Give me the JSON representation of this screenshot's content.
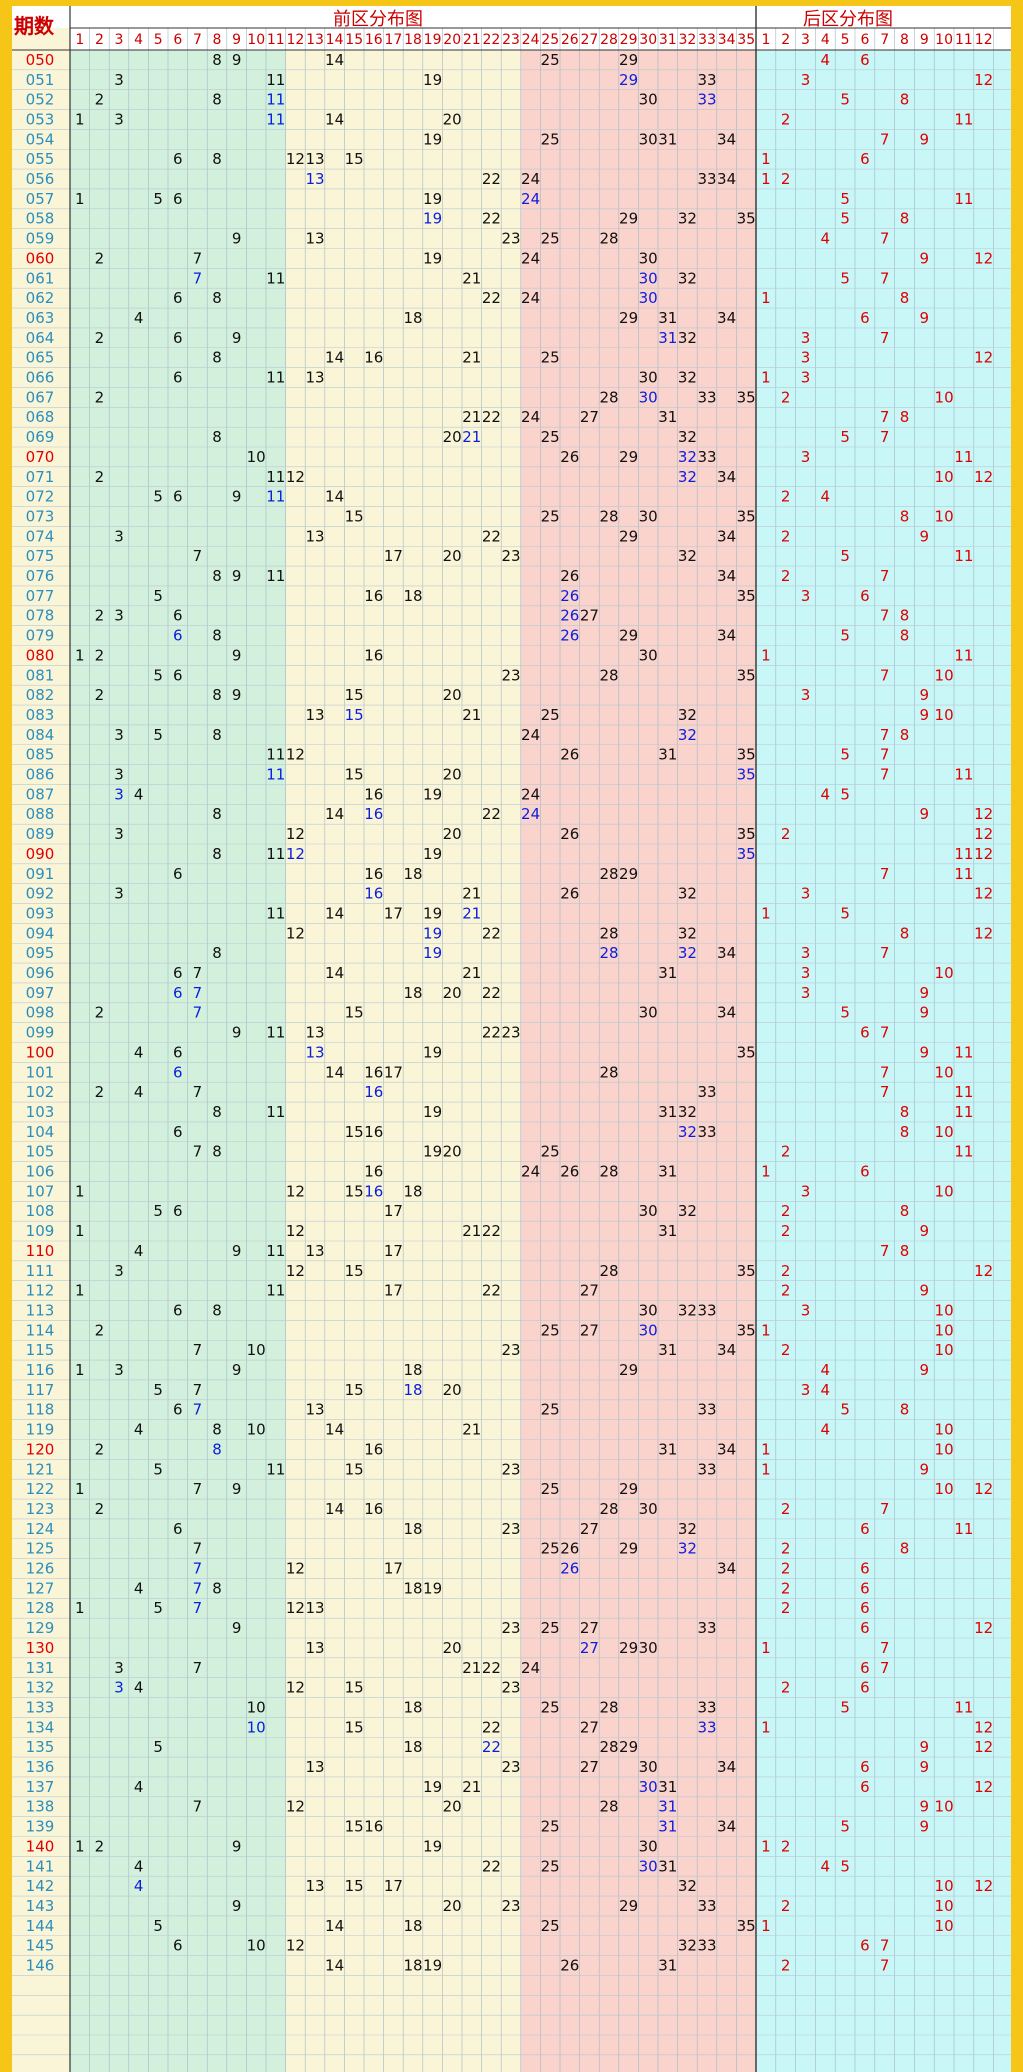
{
  "chart_data": {
    "type": "table",
    "header": {
      "period_label": "期数",
      "front_title": "前区分布图",
      "back_title": "后区分布图",
      "front_numbers": [
        "1",
        "2",
        "3",
        "4",
        "5",
        "6",
        "7",
        "8",
        "9",
        "10",
        "11",
        "12",
        "13",
        "14",
        "15",
        "16",
        "17",
        "18",
        "19",
        "20",
        "21",
        "22",
        "23",
        "24",
        "25",
        "26",
        "27",
        "28",
        "29",
        "30",
        "31",
        "32",
        "33",
        "34",
        "35"
      ],
      "back_numbers": [
        "1",
        "2",
        "3",
        "4",
        "5",
        "6",
        "7",
        "8",
        "9",
        "10",
        "11",
        "12"
      ]
    },
    "colors": {
      "frame": "#f5c518",
      "zone1": "#d3f0dc",
      "zone2": "#fbf5d8",
      "zone3": "#f9d3cc",
      "back": "#c9f7f7",
      "header_text": "#cc0000",
      "period_normal": "#2a8fbd",
      "period_highlight": "#e00000",
      "front_number": "#111111",
      "front_repeat": "#0a1ee0",
      "back_number": "#e00000"
    },
    "rows": [
      {
        "period": "050",
        "front": [
          8,
          9,
          14,
          25,
          29
        ],
        "back": [
          4,
          6
        ]
      },
      {
        "period": "051",
        "front": [
          3,
          11,
          19,
          29,
          33
        ],
        "back": [
          3,
          12
        ]
      },
      {
        "period": "052",
        "front": [
          2,
          8,
          11,
          30,
          33
        ],
        "back": [
          5,
          8
        ]
      },
      {
        "period": "053",
        "front": [
          1,
          3,
          11,
          14,
          20
        ],
        "back": [
          2,
          11
        ]
      },
      {
        "period": "054",
        "front": [
          19,
          25,
          30,
          31,
          34
        ],
        "back": [
          7,
          9
        ]
      },
      {
        "period": "055",
        "front": [
          6,
          8,
          12,
          13,
          15
        ],
        "back": [
          1,
          6
        ]
      },
      {
        "period": "056",
        "front": [
          13,
          22,
          24,
          33,
          34
        ],
        "back": [
          1,
          2
        ]
      },
      {
        "period": "057",
        "front": [
          1,
          5,
          6,
          19,
          24
        ],
        "back": [
          5,
          11
        ]
      },
      {
        "period": "058",
        "front": [
          19,
          22,
          29,
          32,
          35
        ],
        "back": [
          5,
          8
        ]
      },
      {
        "period": "059",
        "front": [
          9,
          13,
          23,
          25,
          28
        ],
        "back": [
          4,
          7
        ]
      },
      {
        "period": "060",
        "front": [
          2,
          7,
          19,
          24,
          30
        ],
        "back": [
          9,
          12
        ]
      },
      {
        "period": "061",
        "front": [
          7,
          11,
          21,
          30,
          32
        ],
        "back": [
          5,
          7
        ]
      },
      {
        "period": "062",
        "front": [
          6,
          8,
          22,
          24,
          30
        ],
        "back": [
          1,
          8
        ]
      },
      {
        "period": "063",
        "front": [
          4,
          18,
          29,
          31,
          34
        ],
        "back": [
          6,
          9
        ]
      },
      {
        "period": "064",
        "front": [
          2,
          6,
          9,
          31,
          32
        ],
        "back": [
          3,
          7
        ]
      },
      {
        "period": "065",
        "front": [
          8,
          14,
          16,
          21,
          25
        ],
        "back": [
          3,
          12
        ]
      },
      {
        "period": "066",
        "front": [
          6,
          11,
          13,
          30,
          32
        ],
        "back": [
          1,
          3
        ]
      },
      {
        "period": "067",
        "front": [
          2,
          28,
          30,
          33,
          35
        ],
        "back": [
          2,
          10
        ]
      },
      {
        "period": "068",
        "front": [
          21,
          22,
          24,
          27,
          31
        ],
        "back": [
          7,
          8
        ]
      },
      {
        "period": "069",
        "front": [
          8,
          20,
          21,
          25,
          32
        ],
        "back": [
          5,
          7
        ]
      },
      {
        "period": "070",
        "front": [
          10,
          26,
          29,
          32,
          33
        ],
        "back": [
          3,
          11
        ]
      },
      {
        "period": "071",
        "front": [
          2,
          11,
          12,
          32,
          34
        ],
        "back": [
          10,
          12
        ]
      },
      {
        "period": "072",
        "front": [
          5,
          6,
          9,
          11,
          14
        ],
        "back": [
          2,
          4
        ]
      },
      {
        "period": "073",
        "front": [
          15,
          25,
          28,
          30,
          35
        ],
        "back": [
          8,
          10
        ]
      },
      {
        "period": "074",
        "front": [
          3,
          13,
          22,
          29,
          34
        ],
        "back": [
          2,
          9
        ]
      },
      {
        "period": "075",
        "front": [
          7,
          17,
          20,
          23,
          32
        ],
        "back": [
          5,
          11
        ]
      },
      {
        "period": "076",
        "front": [
          8,
          9,
          11,
          26,
          34
        ],
        "back": [
          2,
          7
        ]
      },
      {
        "period": "077",
        "front": [
          5,
          16,
          18,
          26,
          35
        ],
        "back": [
          3,
          6
        ]
      },
      {
        "period": "078",
        "front": [
          2,
          3,
          6,
          26,
          27
        ],
        "back": [
          7,
          8
        ]
      },
      {
        "period": "079",
        "front": [
          6,
          8,
          26,
          29,
          34
        ],
        "back": [
          5,
          8
        ]
      },
      {
        "period": "080",
        "front": [
          1,
          2,
          9,
          16,
          30
        ],
        "back": [
          1,
          11
        ]
      },
      {
        "period": "081",
        "front": [
          5,
          6,
          23,
          28,
          35
        ],
        "back": [
          7,
          10
        ]
      },
      {
        "period": "082",
        "front": [
          2,
          8,
          9,
          15,
          20
        ],
        "back": [
          3,
          9
        ]
      },
      {
        "period": "083",
        "front": [
          13,
          15,
          21,
          25,
          32
        ],
        "back": [
          9,
          10
        ]
      },
      {
        "period": "084",
        "front": [
          3,
          5,
          8,
          24,
          32
        ],
        "back": [
          7,
          8
        ]
      },
      {
        "period": "085",
        "front": [
          11,
          12,
          26,
          31,
          35
        ],
        "back": [
          5,
          7
        ]
      },
      {
        "period": "086",
        "front": [
          3,
          11,
          15,
          20,
          35
        ],
        "back": [
          7,
          11
        ]
      },
      {
        "period": "087",
        "front": [
          3,
          4,
          16,
          19,
          24
        ],
        "back": [
          4,
          5
        ]
      },
      {
        "period": "088",
        "front": [
          8,
          14,
          16,
          22,
          24
        ],
        "back": [
          9,
          12
        ]
      },
      {
        "period": "089",
        "front": [
          3,
          12,
          20,
          26,
          35
        ],
        "back": [
          2,
          12
        ]
      },
      {
        "period": "090",
        "front": [
          8,
          11,
          12,
          19,
          35
        ],
        "back": [
          11,
          12
        ]
      },
      {
        "period": "091",
        "front": [
          6,
          16,
          18,
          28,
          29
        ],
        "back": [
          7,
          11
        ]
      },
      {
        "period": "092",
        "front": [
          3,
          16,
          21,
          26,
          32
        ],
        "back": [
          3,
          12
        ]
      },
      {
        "period": "093",
        "front": [
          11,
          14,
          17,
          19,
          21
        ],
        "back": [
          1,
          5
        ]
      },
      {
        "period": "094",
        "front": [
          12,
          19,
          22,
          28,
          32
        ],
        "back": [
          8,
          12
        ]
      },
      {
        "period": "095",
        "front": [
          8,
          19,
          28,
          32,
          34
        ],
        "back": [
          3,
          7
        ]
      },
      {
        "period": "096",
        "front": [
          6,
          7,
          14,
          21,
          31
        ],
        "back": [
          3,
          10
        ]
      },
      {
        "period": "097",
        "front": [
          6,
          7,
          18,
          20,
          22
        ],
        "back": [
          3,
          9
        ]
      },
      {
        "period": "098",
        "front": [
          2,
          7,
          15,
          30,
          34
        ],
        "back": [
          5,
          9
        ]
      },
      {
        "period": "099",
        "front": [
          9,
          11,
          13,
          22,
          23
        ],
        "back": [
          6,
          7
        ]
      },
      {
        "period": "100",
        "front": [
          4,
          6,
          13,
          19,
          35
        ],
        "back": [
          9,
          11
        ]
      },
      {
        "period": "101",
        "front": [
          6,
          14,
          16,
          17,
          28
        ],
        "back": [
          7,
          10
        ]
      },
      {
        "period": "102",
        "front": [
          2,
          4,
          7,
          16,
          33
        ],
        "back": [
          7,
          11
        ]
      },
      {
        "period": "103",
        "front": [
          8,
          11,
          19,
          31,
          32
        ],
        "back": [
          8,
          11
        ]
      },
      {
        "period": "104",
        "front": [
          6,
          15,
          16,
          32,
          33
        ],
        "back": [
          8,
          10
        ]
      },
      {
        "period": "105",
        "front": [
          7,
          8,
          19,
          20,
          25
        ],
        "back": [
          2,
          11
        ]
      },
      {
        "period": "106",
        "front": [
          16,
          24,
          26,
          28,
          31
        ],
        "back": [
          1,
          6
        ]
      },
      {
        "period": "107",
        "front": [
          1,
          12,
          15,
          16,
          18
        ],
        "back": [
          3,
          10
        ]
      },
      {
        "period": "108",
        "front": [
          5,
          6,
          17,
          30,
          32
        ],
        "back": [
          2,
          8
        ]
      },
      {
        "period": "109",
        "front": [
          1,
          12,
          21,
          22,
          31
        ],
        "back": [
          2,
          9
        ]
      },
      {
        "period": "110",
        "front": [
          4,
          9,
          11,
          13,
          17
        ],
        "back": [
          7,
          8
        ]
      },
      {
        "period": "111",
        "front": [
          3,
          12,
          15,
          28,
          35
        ],
        "back": [
          2,
          12
        ]
      },
      {
        "period": "112",
        "front": [
          1,
          11,
          17,
          22,
          27
        ],
        "back": [
          2,
          9
        ]
      },
      {
        "period": "113",
        "front": [
          6,
          8,
          30,
          32,
          33
        ],
        "back": [
          3,
          10
        ]
      },
      {
        "period": "114",
        "front": [
          2,
          25,
          27,
          30,
          35
        ],
        "back": [
          1,
          10
        ]
      },
      {
        "period": "115",
        "front": [
          7,
          10,
          23,
          31,
          34
        ],
        "back": [
          2,
          10
        ]
      },
      {
        "period": "116",
        "front": [
          1,
          3,
          9,
          18,
          29
        ],
        "back": [
          4,
          9
        ]
      },
      {
        "period": "117",
        "front": [
          5,
          7,
          15,
          18,
          20
        ],
        "back": [
          3,
          4
        ]
      },
      {
        "period": "118",
        "front": [
          6,
          7,
          13,
          25,
          33
        ],
        "back": [
          5,
          8
        ]
      },
      {
        "period": "119",
        "front": [
          4,
          8,
          10,
          14,
          21
        ],
        "back": [
          4,
          10
        ]
      },
      {
        "period": "120",
        "front": [
          2,
          8,
          16,
          31,
          34
        ],
        "back": [
          1,
          10
        ]
      },
      {
        "period": "121",
        "front": [
          5,
          11,
          15,
          23,
          33
        ],
        "back": [
          1,
          9
        ]
      },
      {
        "period": "122",
        "front": [
          1,
          7,
          9,
          25,
          29
        ],
        "back": [
          10,
          12
        ]
      },
      {
        "period": "123",
        "front": [
          2,
          14,
          16,
          28,
          30
        ],
        "back": [
          2,
          7
        ]
      },
      {
        "period": "124",
        "front": [
          6,
          18,
          23,
          27,
          32
        ],
        "back": [
          6,
          11
        ]
      },
      {
        "period": "125",
        "front": [
          7,
          25,
          26,
          29,
          32
        ],
        "back": [
          2,
          8
        ]
      },
      {
        "period": "126",
        "front": [
          7,
          12,
          17,
          26,
          34
        ],
        "back": [
          2,
          6
        ]
      },
      {
        "period": "127",
        "front": [
          4,
          7,
          8,
          18,
          19
        ],
        "back": [
          2,
          6
        ]
      },
      {
        "period": "128",
        "front": [
          1,
          5,
          7,
          12,
          13
        ],
        "back": [
          2,
          6
        ]
      },
      {
        "period": "129",
        "front": [
          9,
          23,
          25,
          27,
          33
        ],
        "back": [
          6,
          12
        ]
      },
      {
        "period": "130",
        "front": [
          13,
          20,
          27,
          29,
          30
        ],
        "back": [
          1,
          7
        ]
      },
      {
        "period": "131",
        "front": [
          3,
          7,
          21,
          22,
          24
        ],
        "back": [
          6,
          7
        ]
      },
      {
        "period": "132",
        "front": [
          3,
          4,
          12,
          15,
          23
        ],
        "back": [
          2,
          6
        ]
      },
      {
        "period": "133",
        "front": [
          10,
          18,
          25,
          28,
          33
        ],
        "back": [
          5,
          11
        ]
      },
      {
        "period": "134",
        "front": [
          10,
          15,
          22,
          27,
          33
        ],
        "back": [
          1,
          12
        ]
      },
      {
        "period": "135",
        "front": [
          5,
          18,
          22,
          28,
          29
        ],
        "back": [
          9,
          12
        ]
      },
      {
        "period": "136",
        "front": [
          13,
          23,
          27,
          30,
          34
        ],
        "back": [
          6,
          9
        ]
      },
      {
        "period": "137",
        "front": [
          4,
          19,
          21,
          30,
          31
        ],
        "back": [
          6,
          12
        ]
      },
      {
        "period": "138",
        "front": [
          7,
          12,
          20,
          28,
          31
        ],
        "back": [
          9,
          10
        ]
      },
      {
        "period": "139",
        "front": [
          15,
          16,
          25,
          31,
          34
        ],
        "back": [
          5,
          9
        ]
      },
      {
        "period": "140",
        "front": [
          1,
          2,
          9,
          19,
          30
        ],
        "back": [
          1,
          2
        ]
      },
      {
        "period": "141",
        "front": [
          4,
          22,
          25,
          30,
          31
        ],
        "back": [
          4,
          5
        ]
      },
      {
        "period": "142",
        "front": [
          4,
          13,
          15,
          17,
          32
        ],
        "back": [
          10,
          12
        ]
      },
      {
        "period": "143",
        "front": [
          9,
          20,
          23,
          29,
          33
        ],
        "back": [
          2,
          10
        ]
      },
      {
        "period": "144",
        "front": [
          5,
          14,
          18,
          25,
          35
        ],
        "back": [
          1,
          10
        ]
      },
      {
        "period": "145",
        "front": [
          6,
          10,
          12,
          32,
          33
        ],
        "back": [
          6,
          7
        ]
      },
      {
        "period": "146",
        "front": [
          14,
          18,
          19,
          26,
          31
        ],
        "back": [
          2,
          7
        ]
      }
    ]
  }
}
